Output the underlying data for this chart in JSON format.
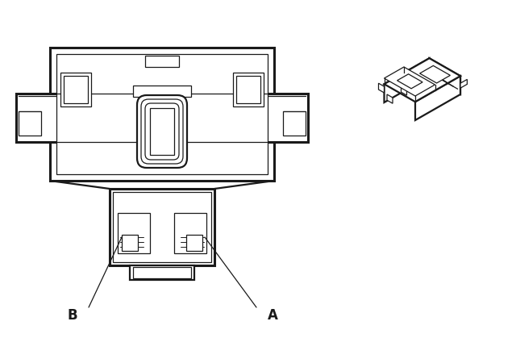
{
  "bg_color": "#ffffff",
  "line_color": "#1a1a1a",
  "lw_main": 1.6,
  "lw_thin": 0.9,
  "lw_thick": 2.2,
  "label_A": "A",
  "label_B": "B",
  "figsize": [
    6.4,
    4.19
  ],
  "dpi": 100
}
